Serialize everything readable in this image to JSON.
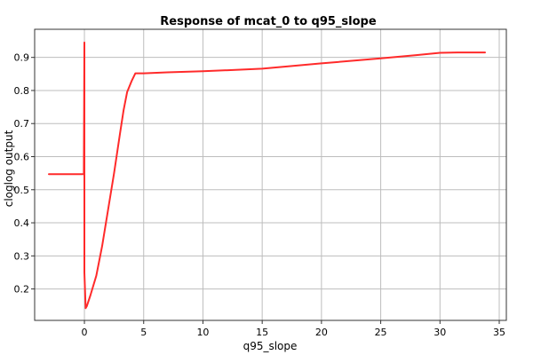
{
  "chart_data": {
    "type": "line",
    "title": "Response of mcat_0 to q95_slope",
    "xlabel": "q95_slope",
    "ylabel": "cloglog output",
    "xlim": [
      -4.2,
      35.6
    ],
    "ylim": [
      0.105,
      0.985
    ],
    "xticks": [
      0,
      5,
      10,
      15,
      20,
      25,
      30,
      35
    ],
    "yticks": [
      0.2,
      0.3,
      0.4,
      0.5,
      0.6,
      0.7,
      0.8,
      0.9
    ],
    "grid": true,
    "series": [
      {
        "color": "#ff2a2a",
        "x": [
          -3.0,
          -0.05,
          -0.05,
          0.0,
          0.0,
          0.1,
          0.2,
          0.5,
          1.0,
          1.5,
          2.0,
          2.5,
          3.0,
          3.3,
          3.6,
          4.0,
          4.3,
          4.5,
          5.0,
          7.0,
          10.0,
          15.0,
          20.0,
          25.0,
          28.0,
          30.0,
          31.5,
          33.8
        ],
        "y": [
          0.547,
          0.547,
          0.56,
          0.945,
          0.25,
          0.142,
          0.148,
          0.18,
          0.24,
          0.33,
          0.44,
          0.55,
          0.67,
          0.74,
          0.795,
          0.83,
          0.852,
          0.852,
          0.852,
          0.855,
          0.858,
          0.866,
          0.882,
          0.897,
          0.907,
          0.914,
          0.915,
          0.915
        ]
      }
    ]
  }
}
